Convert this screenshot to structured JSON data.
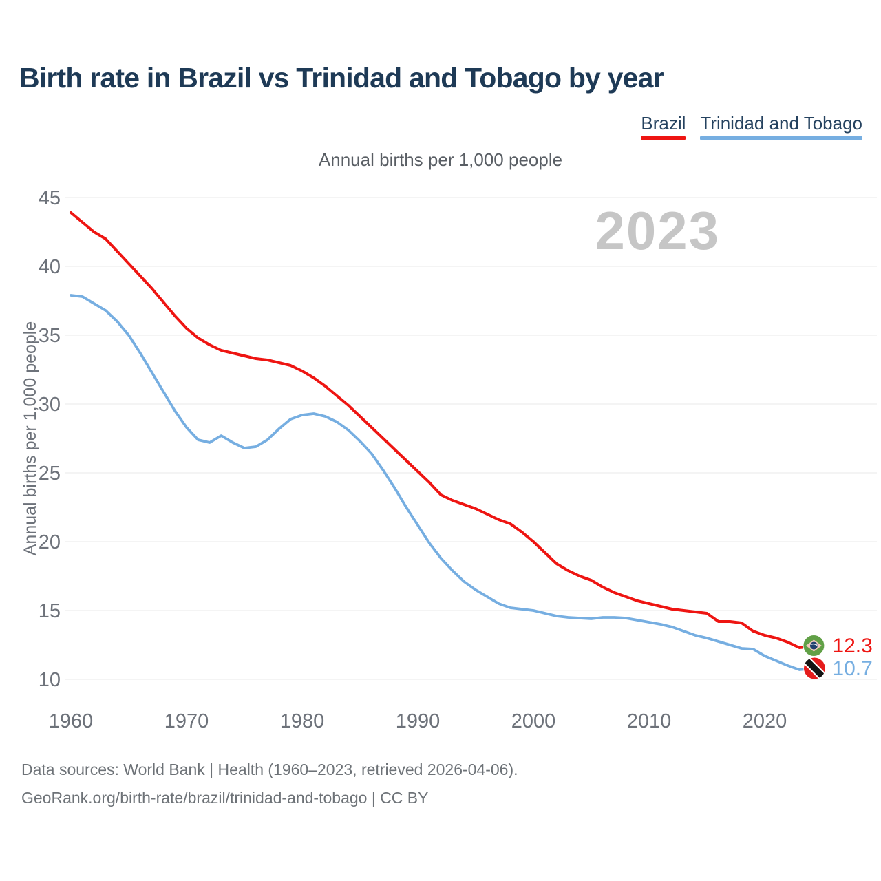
{
  "title": "Birth rate in Brazil vs Trinidad and Tobago by year",
  "legend": {
    "brazil_label": "Brazil",
    "trinidad_label": "Trinidad and Tobago"
  },
  "subtitle": "Annual births per 1,000 people",
  "watermark": "2023",
  "y_axis_label": "Annual births per 1,000 people",
  "end_labels": {
    "brazil": "12.3",
    "trinidad": "10.7"
  },
  "footer": {
    "line1": "Data sources: World Bank | Health (1960–2023, retrieved 2026-04-06).",
    "line2": "GeoRank.org/birth-rate/brazil/trinidad-and-tobago | CC BY"
  },
  "colors": {
    "brazil": "#ee1512",
    "trinidad": "#76aee1",
    "title_text": "#1e3a56",
    "axis_text": "#6d727a",
    "gridline": "#e8e8e8",
    "watermark": "#c6c6c6"
  },
  "chart_data": {
    "type": "line",
    "title": "Annual births per 1,000 people",
    "xlabel": "",
    "ylabel": "Annual births per 1,000 people",
    "x_ticks": [
      1960,
      1970,
      1980,
      1990,
      2000,
      2010,
      2020
    ],
    "y_ticks": [
      45,
      40,
      35,
      30,
      25,
      20,
      15,
      10
    ],
    "ylim": [
      10,
      45
    ],
    "xlim": [
      1960,
      2030
    ],
    "grid": "horizontal",
    "legend_position": "top-right",
    "x": [
      1960,
      1961,
      1962,
      1963,
      1964,
      1965,
      1966,
      1967,
      1968,
      1969,
      1970,
      1971,
      1972,
      1973,
      1974,
      1975,
      1976,
      1977,
      1978,
      1979,
      1980,
      1981,
      1982,
      1983,
      1984,
      1985,
      1986,
      1987,
      1988,
      1989,
      1990,
      1991,
      1992,
      1993,
      1994,
      1995,
      1996,
      1997,
      1998,
      1999,
      2000,
      2001,
      2002,
      2003,
      2004,
      2005,
      2006,
      2007,
      2008,
      2009,
      2010,
      2011,
      2012,
      2013,
      2014,
      2015,
      2016,
      2017,
      2018,
      2019,
      2020,
      2021,
      2022,
      2023
    ],
    "series": [
      {
        "name": "Brazil",
        "color": "#ee1512",
        "final_value": 12.3,
        "values": [
          43.9,
          43.2,
          42.5,
          42.0,
          41.1,
          40.2,
          39.3,
          38.4,
          37.4,
          36.4,
          35.5,
          34.8,
          34.3,
          33.9,
          33.7,
          33.5,
          33.3,
          33.2,
          33.0,
          32.8,
          32.4,
          31.9,
          31.3,
          30.6,
          29.9,
          29.1,
          28.3,
          27.5,
          26.7,
          25.9,
          25.1,
          24.3,
          23.4,
          23.0,
          22.7,
          22.4,
          22.0,
          21.6,
          21.3,
          20.7,
          20.0,
          19.2,
          18.4,
          17.9,
          17.5,
          17.2,
          16.7,
          16.3,
          16.0,
          15.7,
          15.5,
          15.3,
          15.1,
          15.0,
          14.9,
          14.8,
          14.2,
          14.2,
          14.1,
          13.5,
          13.2,
          13.0,
          12.7,
          12.3
        ]
      },
      {
        "name": "Trinidad and Tobago",
        "color": "#76aee1",
        "final_value": 10.7,
        "values": [
          37.9,
          37.8,
          37.3,
          36.8,
          36.0,
          35.0,
          33.7,
          32.3,
          30.9,
          29.5,
          28.3,
          27.4,
          27.2,
          27.7,
          27.2,
          26.8,
          26.9,
          27.4,
          28.2,
          28.9,
          29.2,
          29.3,
          29.1,
          28.7,
          28.1,
          27.3,
          26.4,
          25.2,
          23.9,
          22.5,
          21.2,
          19.9,
          18.8,
          17.9,
          17.1,
          16.5,
          16.0,
          15.5,
          15.2,
          15.1,
          15.0,
          14.8,
          14.6,
          14.5,
          14.45,
          14.4,
          14.5,
          14.5,
          14.45,
          14.3,
          14.15,
          14.0,
          13.8,
          13.5,
          13.2,
          13.0,
          12.75,
          12.5,
          12.25,
          12.2,
          11.7,
          11.35,
          11.0,
          10.7
        ]
      }
    ]
  }
}
